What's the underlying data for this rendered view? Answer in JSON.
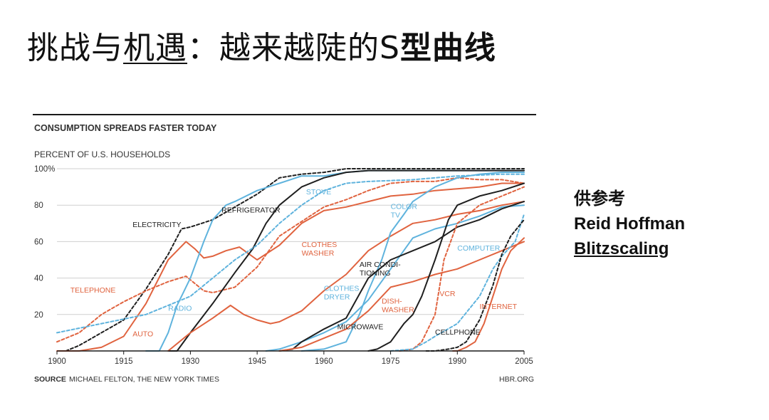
{
  "slide": {
    "title_part1": "挑战与",
    "title_underlined": "机遇",
    "title_part2": "：越来越陡的S",
    "title_bold": "型曲线"
  },
  "side_note": {
    "line1": "供参考",
    "line2": "Reid Hoffman",
    "line3": "Blitzscaling"
  },
  "chart_data": {
    "type": "line",
    "title": "CONSUMPTION SPREADS FASTER TODAY",
    "ylabel": "PERCENT OF U.S. HOUSEHOLDS",
    "source_label": "SOURCE",
    "source_text": "MICHAEL FELTON, THE NEW YORK TIMES",
    "credit": "HBR.ORG",
    "xlim": [
      1900,
      2005
    ],
    "ylim": [
      0,
      100
    ],
    "x_ticks": [
      1900,
      1915,
      1930,
      1945,
      1960,
      1975,
      1990,
      2005
    ],
    "x_tick_labels": [
      "1900",
      "1915",
      "1930",
      "1945",
      "1960",
      "1975",
      "1990",
      "2005"
    ],
    "y_ticks": [
      20,
      40,
      60,
      80,
      100
    ],
    "y_tick_labels": [
      "20",
      "40",
      "60",
      "80",
      "100%"
    ],
    "colors": {
      "orange": "#e0633f",
      "blue": "#5fb3dd",
      "black": "#1f1f1f",
      "grid": "#cfcfcf"
    },
    "series": [
      {
        "name": "ELECTRICITY",
        "color": "black",
        "dash": true,
        "label_pos": [
          1917,
          68
        ],
        "label_anchor": "start",
        "points": [
          [
            1902,
            0
          ],
          [
            1905,
            3
          ],
          [
            1910,
            10
          ],
          [
            1915,
            17
          ],
          [
            1920,
            34
          ],
          [
            1925,
            53
          ],
          [
            1928,
            67
          ],
          [
            1930,
            68
          ],
          [
            1935,
            72
          ],
          [
            1940,
            79
          ],
          [
            1945,
            86
          ],
          [
            1950,
            95
          ],
          [
            1955,
            97
          ],
          [
            1960,
            98
          ],
          [
            1965,
            100
          ],
          [
            1970,
            100
          ],
          [
            1980,
            100
          ],
          [
            2005,
            100
          ]
        ]
      },
      {
        "name": "TELEPHONE",
        "color": "orange",
        "dash": true,
        "label_pos": [
          1903,
          32
        ],
        "label_anchor": "start",
        "points": [
          [
            1900,
            5
          ],
          [
            1905,
            10
          ],
          [
            1910,
            20
          ],
          [
            1915,
            27
          ],
          [
            1920,
            33
          ],
          [
            1925,
            38
          ],
          [
            1929,
            41
          ],
          [
            1933,
            33
          ],
          [
            1935,
            32
          ],
          [
            1940,
            35
          ],
          [
            1945,
            46
          ],
          [
            1950,
            63
          ],
          [
            1955,
            71
          ],
          [
            1960,
            79
          ],
          [
            1965,
            83
          ],
          [
            1970,
            88
          ],
          [
            1975,
            92
          ],
          [
            1980,
            93
          ],
          [
            1985,
            93
          ],
          [
            1990,
            95
          ],
          [
            1995,
            94
          ],
          [
            2000,
            94
          ],
          [
            2005,
            92
          ]
        ]
      },
      {
        "name": "AUTO",
        "color": "orange",
        "dash": false,
        "label_pos": [
          1917,
          8
        ],
        "label_anchor": "start",
        "points": [
          [
            1900,
            0
          ],
          [
            1905,
            0
          ],
          [
            1910,
            2
          ],
          [
            1915,
            8
          ],
          [
            1920,
            26
          ],
          [
            1925,
            50
          ],
          [
            1929,
            60
          ],
          [
            1931,
            56
          ],
          [
            1933,
            51
          ],
          [
            1935,
            52
          ],
          [
            1938,
            55
          ],
          [
            1941,
            57
          ],
          [
            1945,
            50
          ],
          [
            1950,
            58
          ],
          [
            1955,
            70
          ],
          [
            1960,
            77
          ],
          [
            1965,
            79
          ],
          [
            1970,
            82
          ],
          [
            1975,
            85
          ],
          [
            1980,
            86
          ],
          [
            1985,
            88
          ],
          [
            1990,
            89
          ],
          [
            1995,
            90
          ],
          [
            2000,
            92
          ],
          [
            2005,
            92
          ]
        ]
      },
      {
        "name": "RADIO",
        "color": "blue",
        "dash": false,
        "label_pos": [
          1925,
          22
        ],
        "label_anchor": "start",
        "points": [
          [
            1920,
            0
          ],
          [
            1923,
            0
          ],
          [
            1925,
            10
          ],
          [
            1927,
            25
          ],
          [
            1930,
            40
          ],
          [
            1933,
            60
          ],
          [
            1935,
            72
          ],
          [
            1938,
            80
          ],
          [
            1940,
            82
          ],
          [
            1945,
            88
          ],
          [
            1950,
            92
          ],
          [
            1955,
            96
          ],
          [
            1960,
            96
          ],
          [
            1965,
            98
          ],
          [
            1970,
            99
          ],
          [
            1980,
            99
          ],
          [
            2005,
            99
          ]
        ]
      },
      {
        "name": "REFRIGERATOR",
        "color": "black",
        "dash": false,
        "label_pos": [
          1937,
          76
        ],
        "label_anchor": "start",
        "points": [
          [
            1925,
            0
          ],
          [
            1927,
            0
          ],
          [
            1930,
            10
          ],
          [
            1935,
            26
          ],
          [
            1940,
            43
          ],
          [
            1944,
            56
          ],
          [
            1947,
            70
          ],
          [
            1950,
            80
          ],
          [
            1955,
            90
          ],
          [
            1960,
            95
          ],
          [
            1965,
            98
          ],
          [
            1970,
            99
          ],
          [
            2005,
            99
          ]
        ]
      },
      {
        "name": "STOVE",
        "color": "blue",
        "dash": true,
        "label_pos": [
          1956,
          86
        ],
        "label_anchor": "start",
        "points": [
          [
            1900,
            10
          ],
          [
            1910,
            15
          ],
          [
            1920,
            20
          ],
          [
            1930,
            30
          ],
          [
            1935,
            40
          ],
          [
            1940,
            50
          ],
          [
            1945,
            58
          ],
          [
            1950,
            70
          ],
          [
            1955,
            80
          ],
          [
            1960,
            88
          ],
          [
            1965,
            92
          ],
          [
            1970,
            93
          ],
          [
            1980,
            94
          ],
          [
            1990,
            96
          ],
          [
            2000,
            97
          ],
          [
            2005,
            97
          ]
        ]
      },
      {
        "name": "CLOTHES WASHER",
        "color": "orange",
        "dash": false,
        "label_pos": [
          1955,
          57
        ],
        "label_anchor": "start",
        "points": [
          [
            1925,
            0
          ],
          [
            1930,
            10
          ],
          [
            1935,
            18
          ],
          [
            1939,
            25
          ],
          [
            1942,
            20
          ],
          [
            1945,
            17
          ],
          [
            1948,
            15
          ],
          [
            1950,
            16
          ],
          [
            1955,
            22
          ],
          [
            1960,
            33
          ],
          [
            1965,
            42
          ],
          [
            1970,
            55
          ],
          [
            1975,
            63
          ],
          [
            1980,
            70
          ],
          [
            1985,
            72
          ],
          [
            1990,
            75
          ],
          [
            1995,
            77
          ],
          [
            2000,
            80
          ],
          [
            2005,
            82
          ]
        ]
      },
      {
        "name": "CLOTHES DRYER",
        "color": "blue",
        "dash": false,
        "label_pos": [
          1960,
          33
        ],
        "label_anchor": "start",
        "points": [
          [
            1947,
            0
          ],
          [
            1950,
            1
          ],
          [
            1955,
            5
          ],
          [
            1960,
            10
          ],
          [
            1965,
            16
          ],
          [
            1970,
            28
          ],
          [
            1975,
            45
          ],
          [
            1980,
            62
          ],
          [
            1985,
            67
          ],
          [
            1990,
            70
          ],
          [
            1995,
            74
          ],
          [
            2000,
            79
          ],
          [
            2005,
            80
          ]
        ]
      },
      {
        "name": "COLOR TV",
        "color": "blue",
        "dash": false,
        "label_pos": [
          1975,
          78
        ],
        "label_anchor": "start",
        "points": [
          [
            1955,
            0
          ],
          [
            1960,
            1
          ],
          [
            1965,
            5
          ],
          [
            1968,
            20
          ],
          [
            1970,
            33
          ],
          [
            1973,
            50
          ],
          [
            1975,
            65
          ],
          [
            1978,
            75
          ],
          [
            1980,
            82
          ],
          [
            1985,
            90
          ],
          [
            1990,
            95
          ],
          [
            1995,
            97
          ],
          [
            2000,
            98
          ],
          [
            2005,
            98
          ]
        ]
      },
      {
        "name": "AIR CONDITIONING",
        "color": "black",
        "dash": false,
        "label_pos": [
          1968,
          46
        ],
        "label_anchor": "start",
        "points": [
          [
            1950,
            0
          ],
          [
            1953,
            1
          ],
          [
            1955,
            5
          ],
          [
            1960,
            12
          ],
          [
            1965,
            18
          ],
          [
            1970,
            40
          ],
          [
            1975,
            50
          ],
          [
            1980,
            55
          ],
          [
            1985,
            60
          ],
          [
            1990,
            68
          ],
          [
            1995,
            72
          ],
          [
            2000,
            78
          ],
          [
            2005,
            82
          ]
        ]
      },
      {
        "name": "DISH- WASHER",
        "color": "orange",
        "dash": false,
        "label_pos": [
          1973,
          26
        ],
        "label_anchor": "start",
        "points": [
          [
            1950,
            0
          ],
          [
            1955,
            2
          ],
          [
            1960,
            7
          ],
          [
            1965,
            12
          ],
          [
            1970,
            22
          ],
          [
            1975,
            35
          ],
          [
            1980,
            38
          ],
          [
            1985,
            42
          ],
          [
            1990,
            45
          ],
          [
            1995,
            50
          ],
          [
            2000,
            55
          ],
          [
            2005,
            60
          ]
        ]
      },
      {
        "name": "MICROWAVE",
        "color": "black",
        "dash": false,
        "label_pos": [
          1963,
          12
        ],
        "label_anchor": "start",
        "points": [
          [
            1970,
            0
          ],
          [
            1972,
            1
          ],
          [
            1975,
            5
          ],
          [
            1978,
            15
          ],
          [
            1980,
            20
          ],
          [
            1982,
            30
          ],
          [
            1985,
            50
          ],
          [
            1988,
            72
          ],
          [
            1990,
            80
          ],
          [
            1995,
            85
          ],
          [
            2000,
            88
          ],
          [
            2005,
            92
          ]
        ]
      },
      {
        "name": "VCR",
        "color": "orange",
        "dash": true,
        "label_pos": [
          1986,
          30
        ],
        "label_anchor": "start",
        "points": [
          [
            1977,
            0
          ],
          [
            1980,
            1
          ],
          [
            1982,
            5
          ],
          [
            1984,
            15
          ],
          [
            1985,
            20
          ],
          [
            1987,
            50
          ],
          [
            1990,
            70
          ],
          [
            1995,
            80
          ],
          [
            2000,
            85
          ],
          [
            2005,
            90
          ]
        ]
      },
      {
        "name": "COMPUTER",
        "color": "blue",
        "dash": true,
        "label_pos": [
          1990,
          55
        ],
        "label_anchor": "start",
        "points": [
          [
            1975,
            0
          ],
          [
            1980,
            1
          ],
          [
            1983,
            5
          ],
          [
            1985,
            8
          ],
          [
            1990,
            15
          ],
          [
            1995,
            30
          ],
          [
            1998,
            45
          ],
          [
            2000,
            52
          ],
          [
            2003,
            60
          ],
          [
            2005,
            75
          ]
        ]
      },
      {
        "name": "CELLPHONE",
        "color": "black",
        "dash": true,
        "label_pos": [
          1985,
          9
        ],
        "label_anchor": "start",
        "points": [
          [
            1983,
            0
          ],
          [
            1985,
            0
          ],
          [
            1988,
            1
          ],
          [
            1990,
            2
          ],
          [
            1992,
            5
          ],
          [
            1995,
            17
          ],
          [
            1998,
            36
          ],
          [
            2000,
            53
          ],
          [
            2002,
            63
          ],
          [
            2005,
            72
          ]
        ]
      },
      {
        "name": "INTERNET",
        "color": "orange",
        "dash": false,
        "label_pos": [
          1995,
          23
        ],
        "label_anchor": "start",
        "points": [
          [
            1989,
            0
          ],
          [
            1990,
            0
          ],
          [
            1992,
            2
          ],
          [
            1994,
            5
          ],
          [
            1996,
            15
          ],
          [
            1998,
            30
          ],
          [
            2000,
            45
          ],
          [
            2002,
            55
          ],
          [
            2005,
            62
          ]
        ]
      }
    ]
  }
}
